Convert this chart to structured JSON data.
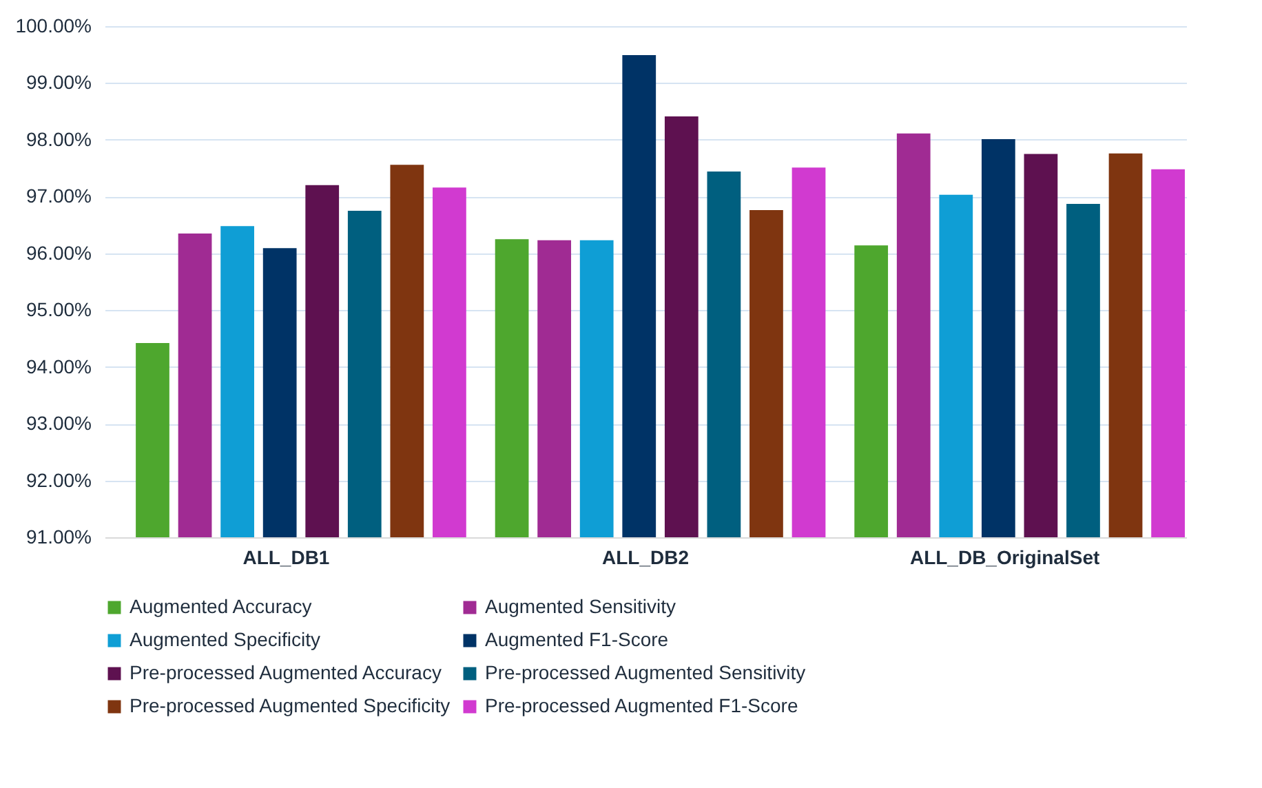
{
  "chart_data": {
    "type": "bar",
    "categories": [
      "ALL_DB1",
      "ALL_DB2",
      "ALL_DB_OriginalSet"
    ],
    "series": [
      {
        "name": "Augmented Accuracy",
        "color": "#4ea72e",
        "values": [
          94.42,
          96.25,
          96.14
        ]
      },
      {
        "name": "Augmented Sensitivity",
        "color": "#a02b93",
        "values": [
          96.35,
          96.23,
          98.11
        ]
      },
      {
        "name": "Augmented Specificity",
        "color": "#0f9ed5",
        "values": [
          96.48,
          96.23,
          97.03
        ]
      },
      {
        "name": "Augmented F1-Score",
        "color": "#003366",
        "values": [
          96.09,
          99.49,
          98.01
        ]
      },
      {
        "name": "Pre-processed Augmented Accuracy",
        "color": "#5e1150",
        "values": [
          97.2,
          98.41,
          97.75
        ]
      },
      {
        "name": "Pre-processed Augmented Sensitivity",
        "color": "#005f7f",
        "values": [
          96.75,
          97.44,
          96.87
        ]
      },
      {
        "name": "Pre-processed Augmented Specificity",
        "color": "#7f3510",
        "values": [
          97.56,
          96.76,
          97.76
        ]
      },
      {
        "name": "Pre-processed Augmented F1-Score",
        "color": "#d13ad0",
        "values": [
          97.16,
          97.51,
          97.48
        ]
      }
    ],
    "ylim": [
      91,
      100
    ],
    "yticks": [
      {
        "value": 91,
        "label": "91.00%"
      },
      {
        "value": 92,
        "label": "92.00%"
      },
      {
        "value": 93,
        "label": "93.00%"
      },
      {
        "value": 94,
        "label": "94.00%"
      },
      {
        "value": 95,
        "label": "95.00%"
      },
      {
        "value": 96,
        "label": "96.00%"
      },
      {
        "value": 97,
        "label": "97.00%"
      },
      {
        "value": 98,
        "label": "98.00%"
      },
      {
        "value": 99,
        "label": "99.00%"
      },
      {
        "value": 100,
        "label": "100.00%"
      }
    ],
    "grid": "y",
    "legend": "bottom"
  }
}
